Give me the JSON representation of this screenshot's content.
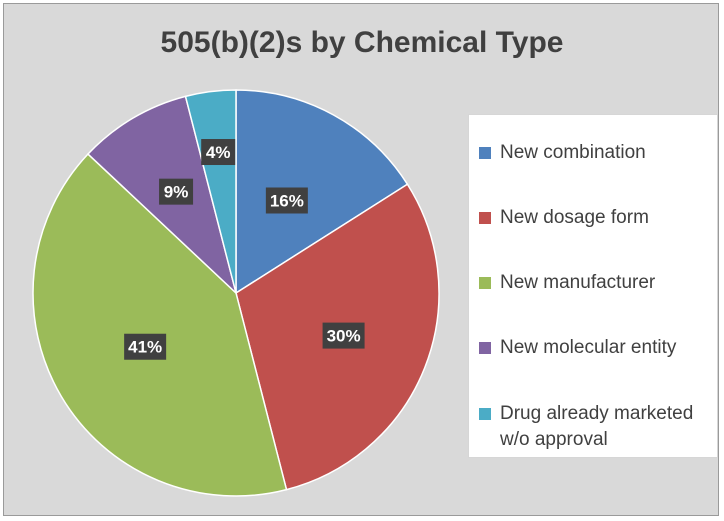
{
  "chart_data": {
    "type": "pie",
    "title": "505(b)(2)s by Chemical Type",
    "legend_position": "right",
    "slices": [
      {
        "label": "New combination",
        "value": 16,
        "display": "16%",
        "color": "#4f81bd"
      },
      {
        "label": "New dosage form",
        "value": 30,
        "display": "30%",
        "color": "#c0504d"
      },
      {
        "label": "New manufacturer",
        "value": 41,
        "display": "41%",
        "color": "#9bbb59"
      },
      {
        "label": "New molecular entity",
        "value": 9,
        "display": "9%",
        "color": "#8064a2"
      },
      {
        "label": "Drug already marketed\nw/o approval",
        "value": 4,
        "display": "4%",
        "color": "#4bacc6"
      }
    ]
  }
}
